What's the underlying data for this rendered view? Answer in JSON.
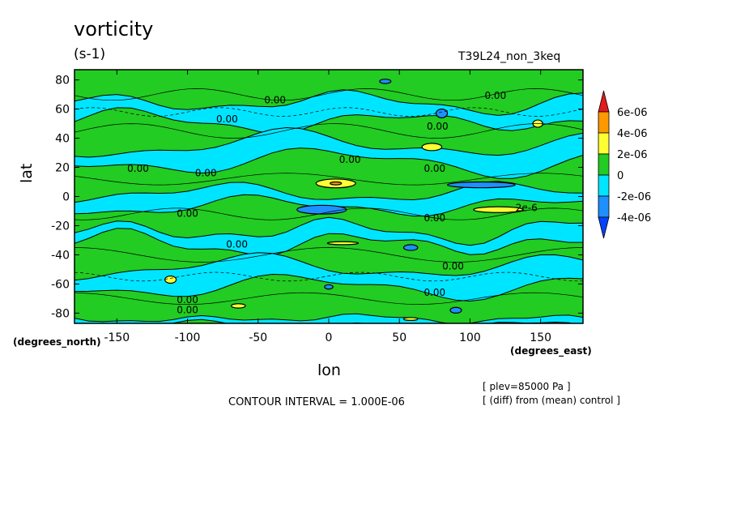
{
  "chart_data": {
    "type": "heatmap",
    "title": "vorticity",
    "units": "(s-1)",
    "run_label": "T39L24_non_3keq",
    "xlabel": "lon",
    "ylabel": "lat",
    "x_units_left": "(degrees_north)",
    "x_units_right": "(degrees_east)",
    "xlim": [
      -180,
      180
    ],
    "ylim": [
      -87,
      87
    ],
    "x_ticks": [
      -150,
      -100,
      -50,
      0,
      50,
      100,
      150
    ],
    "y_ticks": [
      80,
      60,
      40,
      20,
      0,
      -20,
      -40,
      -60,
      -80
    ],
    "contour_interval": "CONTOUR INTERVAL = 1.000E-06",
    "info_lines": [
      "[ plev=85000 Pa ]",
      "[ (diff) from (mean) control ]"
    ],
    "colorbar": {
      "labels": [
        "6e-06",
        "4e-06",
        "2e-06",
        "0",
        "-2e-06",
        "-4e-06"
      ],
      "colors": [
        "#e41a1c",
        "#ff9900",
        "#ffff33",
        "#22cc22",
        "#00e5ff",
        "#1e90ff",
        "#0044ff"
      ]
    },
    "contour_labels": [
      {
        "text": "0.00",
        "lon": -38,
        "lat": 64
      },
      {
        "text": "0.00",
        "lon": -72,
        "lat": 51
      },
      {
        "text": "0.00",
        "lon": 118,
        "lat": 67
      },
      {
        "text": "0.00",
        "lon": 77,
        "lat": 46
      },
      {
        "text": "0.00",
        "lon": -135,
        "lat": 17
      },
      {
        "text": "0.00",
        "lon": -87,
        "lat": 14
      },
      {
        "text": "0.00",
        "lon": 15,
        "lat": 23
      },
      {
        "text": "0.00",
        "lon": 75,
        "lat": 17
      },
      {
        "text": "0.00",
        "lon": -100,
        "lat": -14
      },
      {
        "text": "0.00",
        "lon": 75,
        "lat": -17
      },
      {
        "text": "2e-6",
        "lon": 140,
        "lat": -10
      },
      {
        "text": "0.00",
        "lon": -65,
        "lat": -35
      },
      {
        "text": "0.00",
        "lon": 88,
        "lat": -50
      },
      {
        "text": "0.00",
        "lon": 75,
        "lat": -68
      },
      {
        "text": "0.00",
        "lon": -100,
        "lat": -73
      },
      {
        "text": "0.00",
        "lon": -100,
        "lat": -80
      }
    ],
    "fields": {
      "positive_2e6": [
        {
          "lon": 5,
          "lat": 9,
          "w": 28,
          "h": 6
        },
        {
          "lon": -112,
          "lat": -57,
          "w": 8,
          "h": 5
        },
        {
          "lon": 73,
          "lat": 34,
          "w": 14,
          "h": 5
        },
        {
          "lon": 148,
          "lat": 50,
          "w": 7,
          "h": 5
        },
        {
          "lon": 120,
          "lat": -9,
          "w": 35,
          "h": 4
        },
        {
          "lon": 10,
          "lat": -32,
          "w": 22,
          "h": 2
        },
        {
          "lon": -64,
          "lat": -75,
          "w": 10,
          "h": 3
        },
        {
          "lon": 58,
          "lat": -84,
          "w": 10,
          "h": 2
        }
      ],
      "positive_4e6": [
        {
          "lon": 5,
          "lat": 9,
          "w": 8,
          "h": 2
        }
      ],
      "negative_2e6": [
        {
          "lon": -5,
          "lat": -9,
          "w": 35,
          "h": 6
        },
        {
          "lon": 80,
          "lat": 57,
          "w": 8,
          "h": 6
        },
        {
          "lon": 40,
          "lat": 79,
          "w": 8,
          "h": 3
        },
        {
          "lon": 108,
          "lat": 8,
          "w": 48,
          "h": 4
        },
        {
          "lon": 58,
          "lat": -35,
          "w": 10,
          "h": 4
        },
        {
          "lon": 90,
          "lat": -78,
          "w": 8,
          "h": 4
        },
        {
          "lon": 0,
          "lat": -62,
          "w": 6,
          "h": 3
        }
      ]
    }
  }
}
